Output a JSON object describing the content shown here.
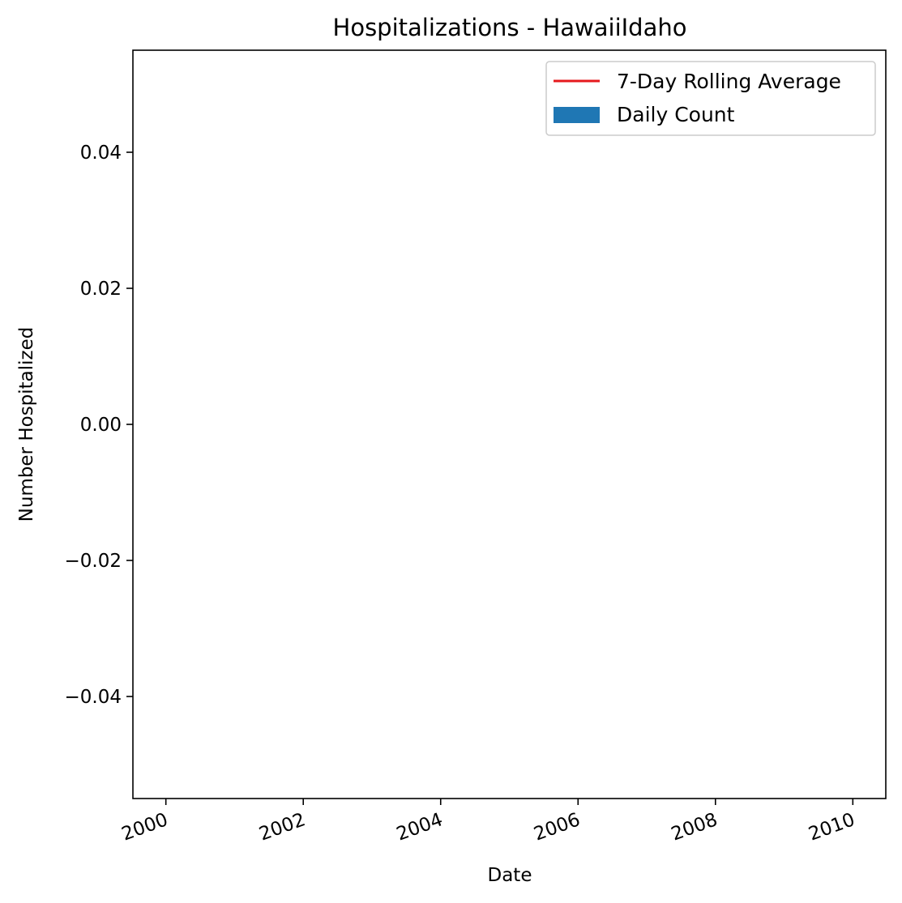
{
  "chart_data": {
    "type": "bar",
    "title": "Hospitalizations - HawaiiIdaho",
    "xlabel": "Date",
    "ylabel": "Number Hospitalized",
    "x_ticks": [
      "2000",
      "2002",
      "2004",
      "2006",
      "2008",
      "2010"
    ],
    "y_ticks": [
      "−0.04",
      "−0.02",
      "0.00",
      "0.02",
      "0.04"
    ],
    "y_tick_values": [
      -0.04,
      -0.02,
      0.0,
      0.02,
      0.04
    ],
    "x_tick_values": [
      2000,
      2002,
      2004,
      2006,
      2008,
      2010
    ],
    "xlim": [
      1999.52,
      2010.48
    ],
    "ylim": [
      -0.055,
      0.055
    ],
    "grid": false,
    "legend_position": "top-right",
    "series": [
      {
        "name": "7-Day Rolling Average",
        "kind": "line",
        "color": "#e6191d",
        "x": [],
        "values": []
      },
      {
        "name": "Daily Count",
        "kind": "bar",
        "color": "#1f77b4",
        "x": [],
        "values": []
      }
    ]
  }
}
